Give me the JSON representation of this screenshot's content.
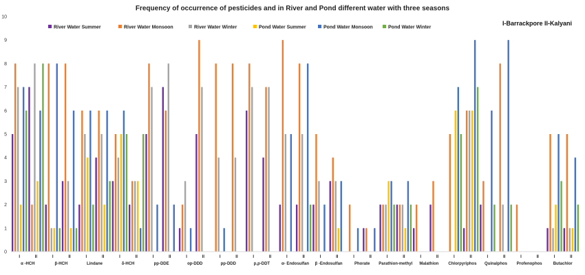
{
  "chart_data": {
    "type": "bar",
    "title": "Frequency of occurrence of pesticides and  in River and Pond different water with three seasons",
    "ylim": [
      0,
      10
    ],
    "yticks": [
      "0",
      "1",
      "2",
      "3",
      "4",
      "5",
      "6",
      "7",
      "8",
      "9",
      "10"
    ],
    "grid": false,
    "legend_position": "top",
    "annotations": [
      "I-Barrackpore",
      "II-Kalyani"
    ],
    "groups": [
      "α -HCH",
      "β-HCH",
      "Lindane",
      "δ-HCH",
      "pp-DDE",
      "op-DDD",
      "pp-DDD",
      "p,p-DDT",
      "α- Endosulfan",
      "β -Endosulfan",
      "Phorate",
      "Parathion-methyl",
      "Malathion",
      "Chlorpyriphos",
      "Quinalphos",
      "Profenophos",
      "Butachlor"
    ],
    "sub_categories": [
      "I",
      "II"
    ],
    "categories": [
      "α -HCH I",
      "α -HCH II",
      "β-HCH I",
      "β-HCH II",
      "Lindane I",
      "Lindane II",
      "δ-HCH I",
      "δ-HCH II",
      "pp-DDE I",
      "pp-DDE II",
      "op-DDD I",
      "op-DDD II",
      "pp-DDD I",
      "pp-DDD II",
      "p,p-DDT I",
      "p,p-DDT II",
      "α- Endosulfan I",
      "α- Endosulfan II",
      "β -Endosulfan I",
      "β -Endosulfan II",
      "Phorate I",
      "Phorate II",
      "Parathion-methyl I",
      "Parathion-methyl II",
      "Malathion I",
      "Malathion II",
      "Chlorpyriphos I",
      "Chlorpyriphos II",
      "Quinalphos I",
      "Quinalphos II",
      "Profenophos I",
      "Profenophos II",
      "Butachlor I",
      "Butachlor II"
    ],
    "series": [
      {
        "name": "River Water Summer",
        "color": "#7030a0",
        "values": [
          5,
          7,
          2,
          3,
          2,
          4,
          3,
          2,
          5,
          7,
          1,
          5,
          0,
          0,
          6,
          4,
          2,
          2,
          2,
          3,
          0,
          1,
          2,
          2,
          1,
          2,
          0,
          1,
          2,
          0,
          0,
          0,
          1,
          1
        ]
      },
      {
        "name": "River Water Monsoon",
        "color": "#ed7d31",
        "values": [
          8,
          2,
          8,
          8,
          6,
          6,
          5,
          3,
          8,
          6,
          2,
          9,
          8,
          8,
          8,
          7,
          9,
          8,
          5,
          4,
          2,
          1,
          2,
          2,
          2,
          3,
          5,
          6,
          3,
          8,
          2,
          0,
          5,
          5
        ]
      },
      {
        "name": "River Water Winter",
        "color": "#a5a5a5",
        "values": [
          7,
          8,
          1,
          3,
          5,
          5,
          4,
          3,
          7,
          8,
          3,
          7,
          4,
          4,
          7,
          7,
          5,
          5,
          3,
          3,
          0,
          0,
          2,
          2,
          0,
          0,
          0,
          6,
          0,
          2,
          0,
          0,
          1,
          1
        ]
      },
      {
        "name": "Pond Water Summer",
        "color": "#ffc000",
        "values": [
          2,
          3,
          1,
          1,
          4,
          2,
          5,
          3,
          0,
          0,
          0,
          0,
          0,
          0,
          0,
          0,
          0,
          0,
          0,
          1,
          0,
          0,
          3,
          1,
          0,
          0,
          6,
          6,
          0,
          0,
          0,
          0,
          2,
          1
        ]
      },
      {
        "name": "Pond Water Monsoon",
        "color": "#4472c4",
        "values": [
          7,
          6,
          8,
          6,
          6,
          6,
          6,
          1,
          2,
          2,
          1,
          0,
          1,
          0,
          0,
          0,
          5,
          8,
          2,
          3,
          1,
          1,
          3,
          3,
          0,
          0,
          7,
          9,
          6,
          9,
          0,
          0,
          5,
          4
        ]
      },
      {
        "name": "Pond Water Winter",
        "color": "#70ad47",
        "values": [
          6,
          8,
          1,
          1,
          2,
          3,
          5,
          5,
          0,
          0,
          0,
          0,
          0,
          0,
          0,
          0,
          0,
          2,
          0,
          0,
          0,
          0,
          2,
          2,
          0,
          0,
          5,
          7,
          2,
          2,
          0,
          0,
          3,
          2
        ]
      }
    ]
  }
}
